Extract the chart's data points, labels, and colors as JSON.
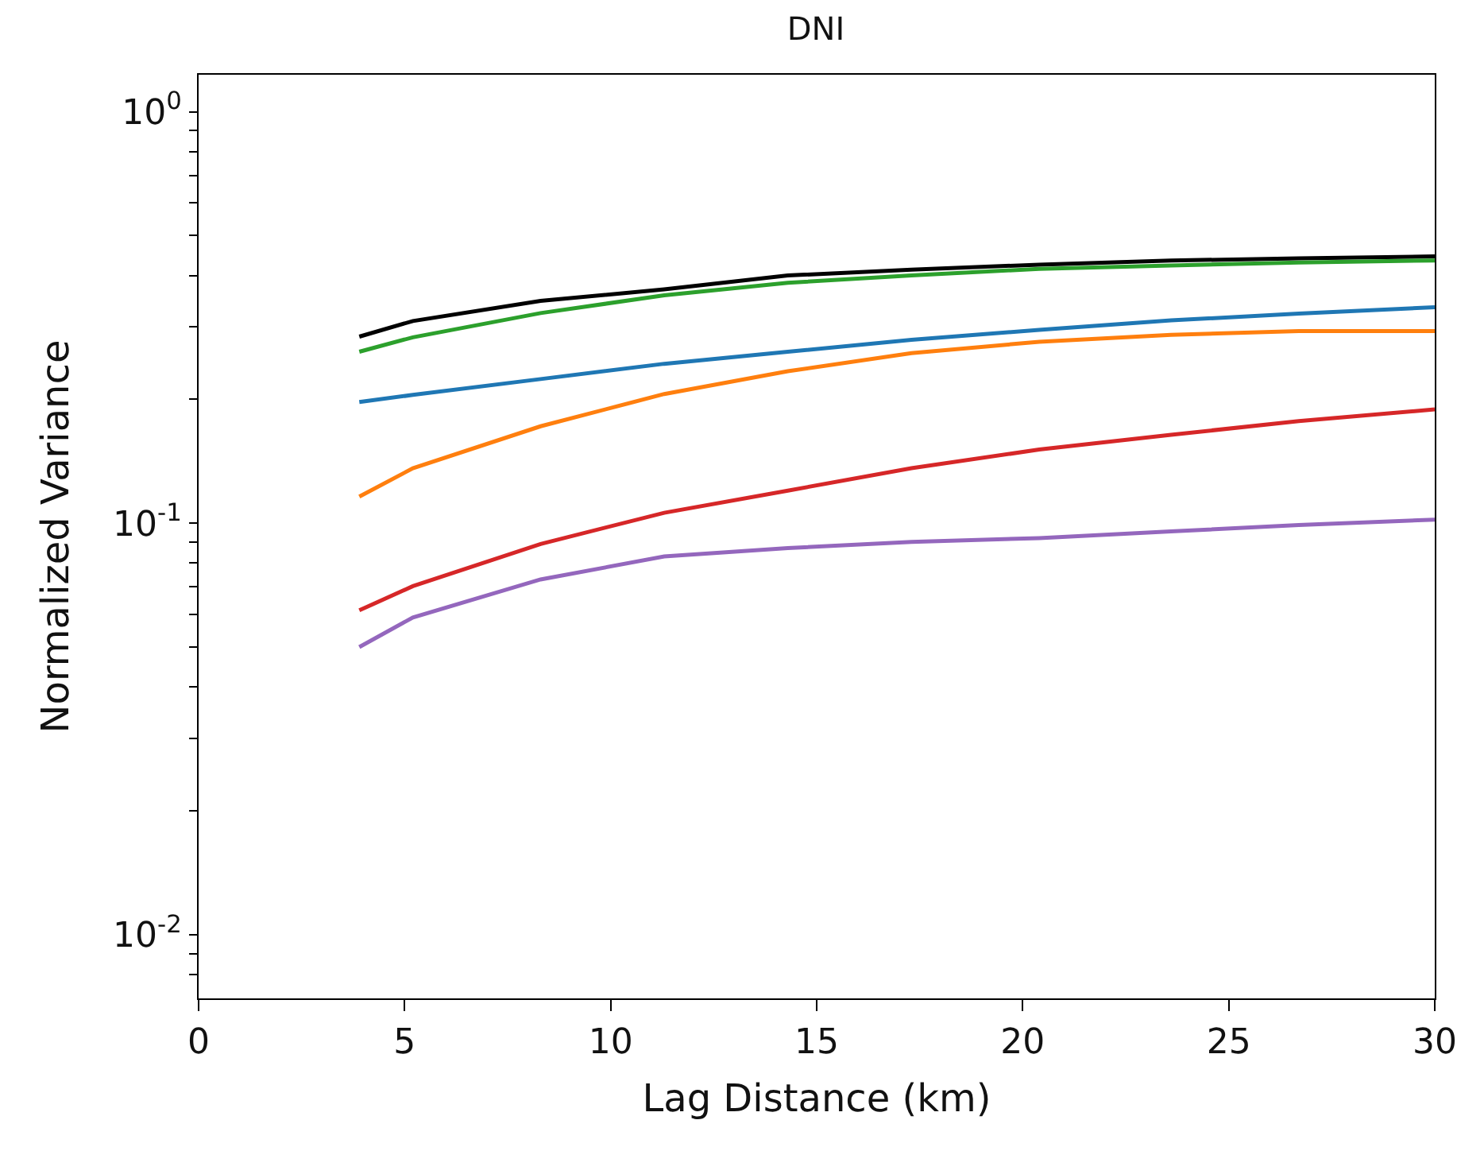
{
  "chart_data": {
    "type": "line",
    "title": "DNI",
    "xlabel": "Lag Distance (km)",
    "ylabel": "Normalized Variance",
    "x": [
      3.9,
      5.2,
      8.3,
      11.3,
      14.3,
      17.3,
      20.4,
      23.6,
      26.7,
      30
    ],
    "series": [
      {
        "color": "#1f77b4",
        "values": [
          0.197,
          0.205,
          0.224,
          0.244,
          0.261,
          0.279,
          0.295,
          0.311,
          0.323,
          0.335
        ]
      },
      {
        "color": "#ff7f0e",
        "values": [
          0.116,
          0.136,
          0.172,
          0.206,
          0.234,
          0.259,
          0.276,
          0.287,
          0.293,
          0.293
        ]
      },
      {
        "color": "#d62728",
        "values": [
          0.0614,
          0.0703,
          0.089,
          0.106,
          0.12,
          0.136,
          0.151,
          0.164,
          0.177,
          0.189
        ]
      },
      {
        "color": "#9467bd",
        "values": [
          0.05,
          0.059,
          0.073,
          0.083,
          0.087,
          0.09,
          0.092,
          0.0955,
          0.099,
          0.102
        ]
      },
      {
        "color": "#000000",
        "values": [
          0.284,
          0.31,
          0.347,
          0.37,
          0.4,
          0.413,
          0.425,
          0.435,
          0.44,
          0.445
        ]
      },
      {
        "color": "#2ca02c",
        "values": [
          0.261,
          0.283,
          0.324,
          0.358,
          0.384,
          0.4,
          0.415,
          0.423,
          0.43,
          0.435
        ]
      }
    ],
    "log": "y",
    "grid": false,
    "marker": "none",
    "line_style": "solid",
    "xlim": [
      0,
      30
    ],
    "xticks": [
      0,
      5,
      10,
      15,
      20,
      25,
      30
    ],
    "ylim": [
      0.007,
      1.23
    ],
    "yticks": [
      {
        "value": 0.008,
        "label": null
      },
      {
        "value": 0.009,
        "label": null
      },
      {
        "value": 0.01,
        "label": "10$^{-2}$"
      },
      {
        "value": 0.02,
        "label": null
      },
      {
        "value": 0.03,
        "label": null
      },
      {
        "value": 0.04,
        "label": null
      },
      {
        "value": 0.05,
        "label": null
      },
      {
        "value": 0.06,
        "label": null
      },
      {
        "value": 0.07,
        "label": null
      },
      {
        "value": 0.08,
        "label": null
      },
      {
        "value": 0.09,
        "label": null
      },
      {
        "value": 0.1,
        "label": "10$^{-1}$"
      },
      {
        "value": 0.2,
        "label": null
      },
      {
        "value": 0.3,
        "label": null
      },
      {
        "value": 0.4,
        "label": null
      },
      {
        "value": 0.5,
        "label": null
      },
      {
        "value": 0.6,
        "label": null
      },
      {
        "value": 0.7,
        "label": null
      },
      {
        "value": 0.8,
        "label": null
      },
      {
        "value": 0.9,
        "label": null
      },
      {
        "value": 1,
        "label": "10$^{0}$"
      }
    ]
  }
}
